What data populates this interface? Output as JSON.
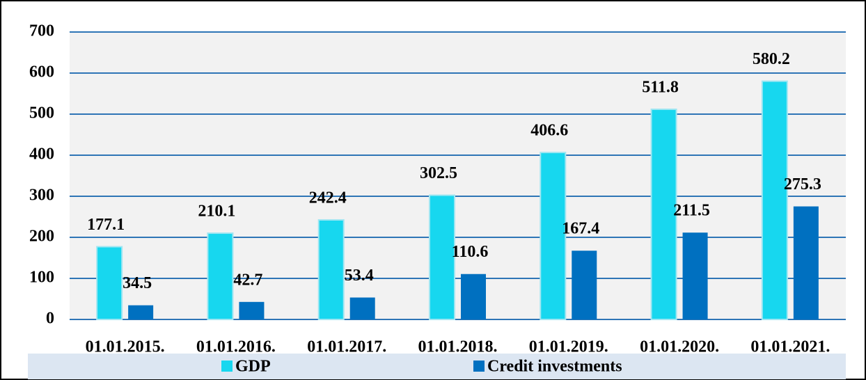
{
  "chart_data": {
    "type": "bar",
    "categories": [
      "01.01.2015.",
      "01.01.2016.",
      "01.01.2017.",
      "01.01.2018.",
      "01.01.2019.",
      "01.01.2020.",
      "01.01.2021."
    ],
    "series": [
      {
        "name": "GDP",
        "color": "#17d7ef",
        "values": [
          177.1,
          210.1,
          242.4,
          302.5,
          406.6,
          511.8,
          580.2
        ]
      },
      {
        "name": "Credit investments",
        "color": "#0070c0",
        "values": [
          34.5,
          42.7,
          53.4,
          110.6,
          167.4,
          211.5,
          275.3
        ]
      }
    ],
    "ylim": [
      0,
      700
    ],
    "yticks": [
      0,
      100,
      200,
      300,
      400,
      500,
      600,
      700
    ],
    "grid": true,
    "legend": "bottom"
  }
}
